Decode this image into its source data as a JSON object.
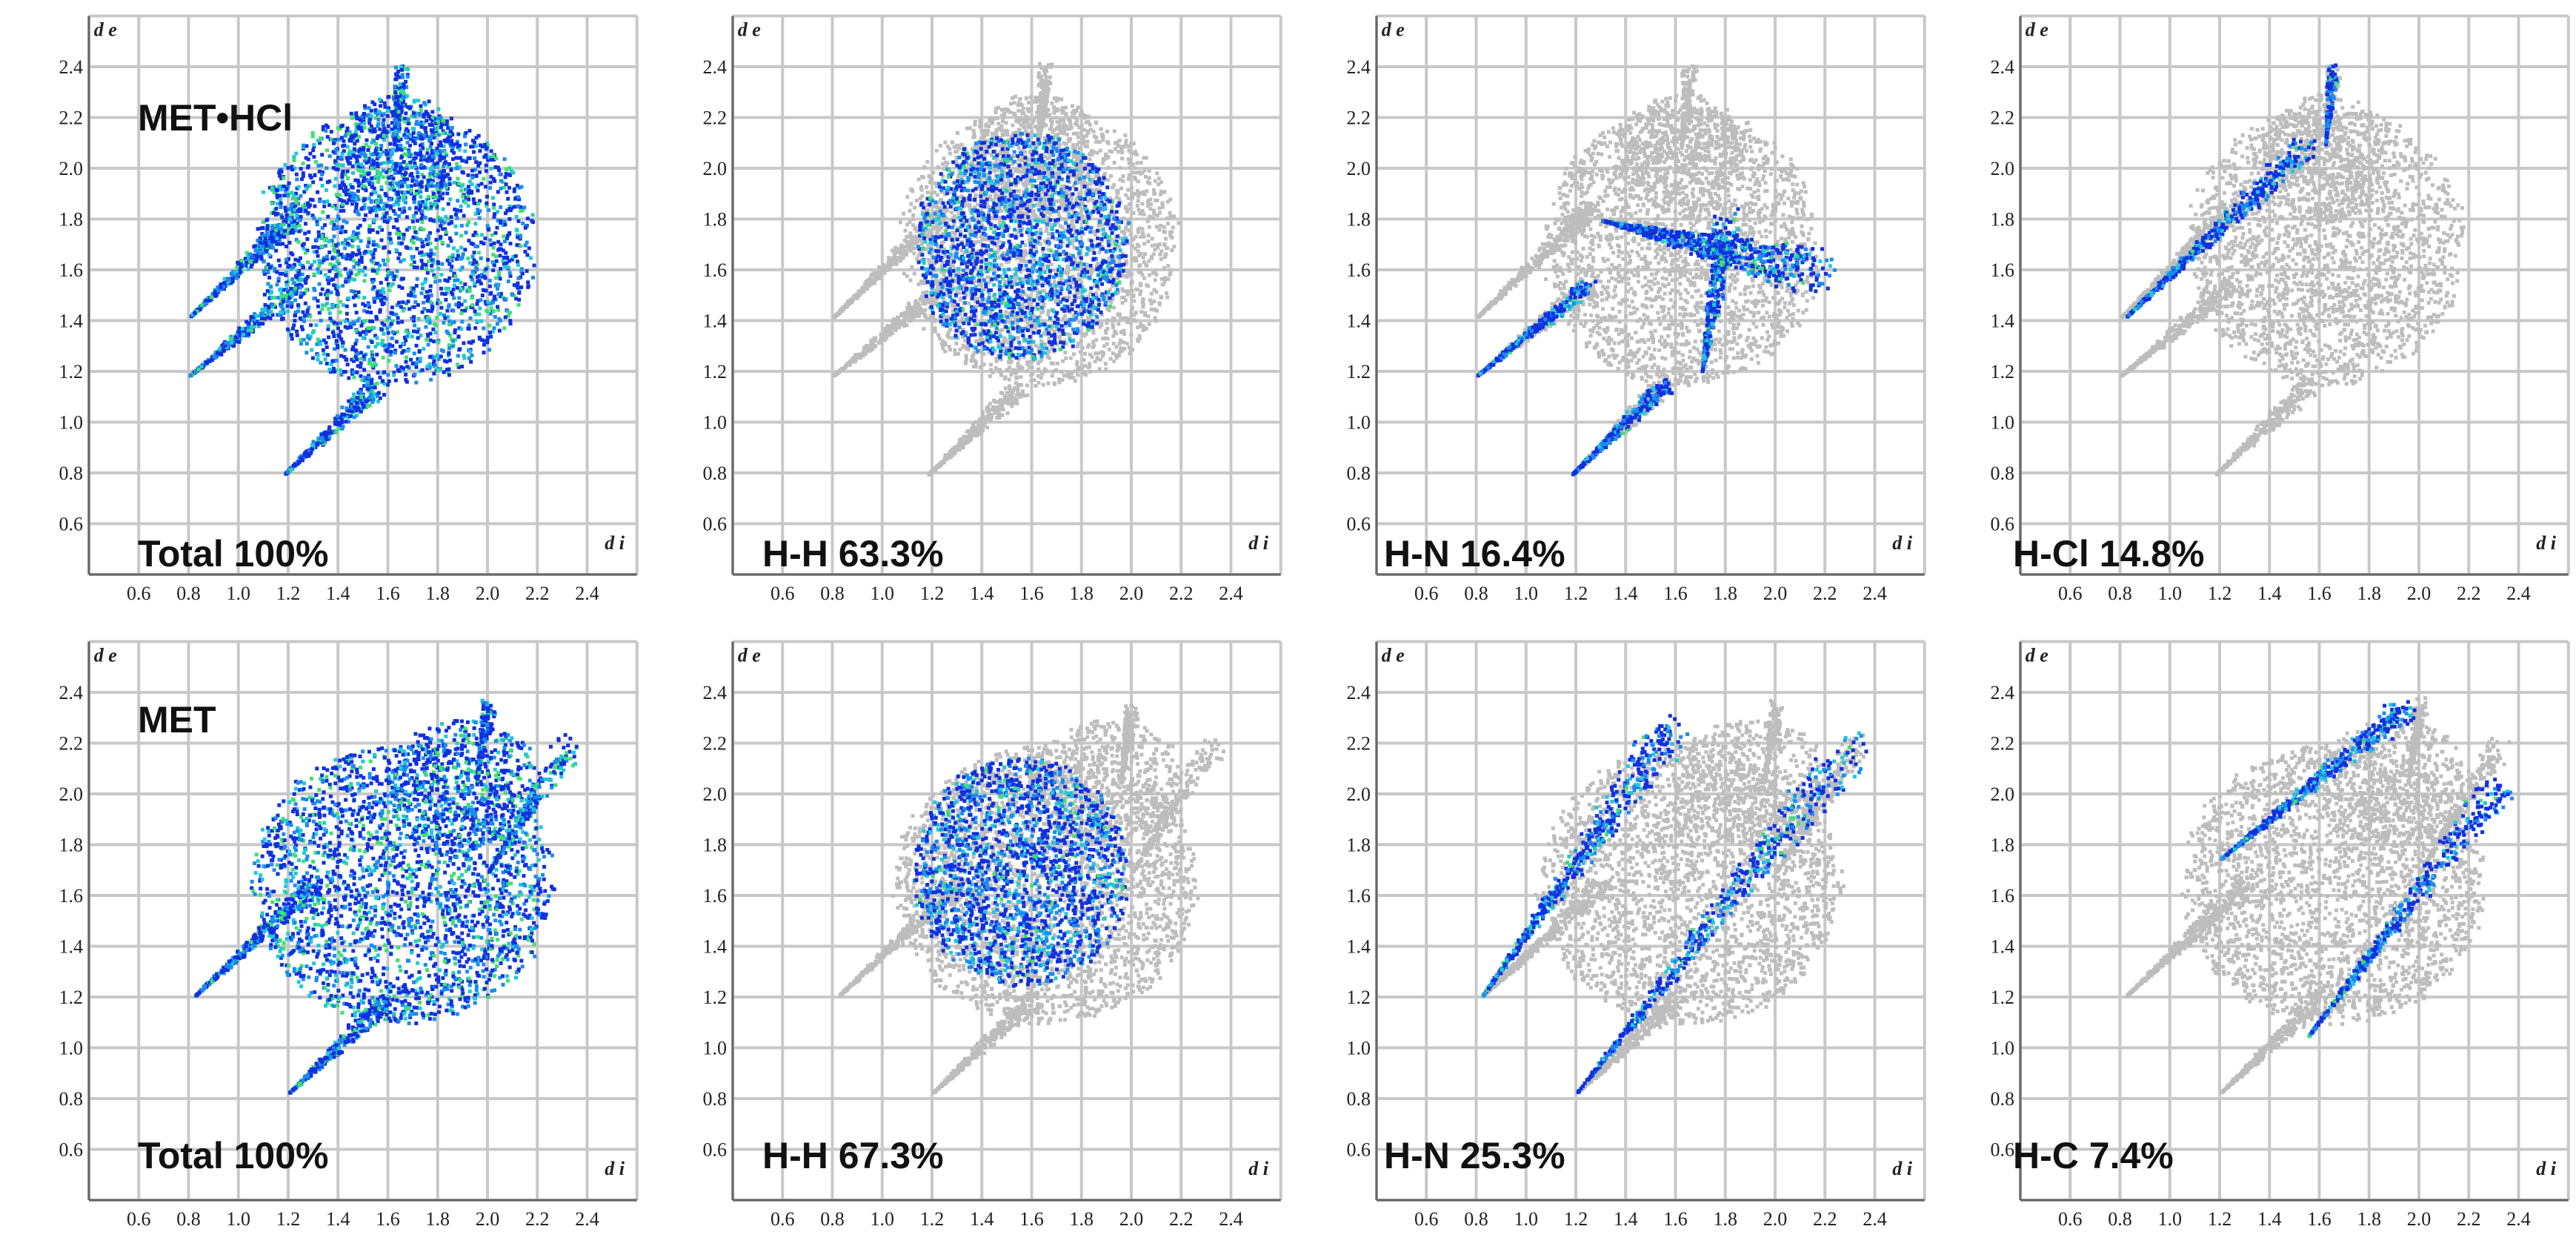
{
  "chart_data": [
    {
      "type": "scatter",
      "compound": "MET•HCl",
      "label": "Total 100%",
      "xlabel": "d i",
      "ylabel": "d e",
      "xlim": [
        0.4,
        2.6
      ],
      "ylim": [
        0.4,
        2.6
      ],
      "xticks": [
        "0.6",
        "0.8",
        "1.0",
        "1.2",
        "1.4",
        "1.6",
        "1.8",
        "2.0",
        "2.2",
        "2.4"
      ],
      "yticks": [
        "0.6",
        "0.8",
        "1.0",
        "1.2",
        "1.4",
        "1.6",
        "1.8",
        "2.0",
        "2.2",
        "2.4"
      ],
      "highlight": "all",
      "background": "none"
    },
    {
      "type": "scatter",
      "label": "H-H 63.3%",
      "xlabel": "d i",
      "ylabel": "d e",
      "xlim": [
        0.4,
        2.6
      ],
      "ylim": [
        0.4,
        2.6
      ],
      "xticks": [
        "0.6",
        "0.8",
        "1.0",
        "1.2",
        "1.4",
        "1.6",
        "1.8",
        "2.0",
        "2.2",
        "2.4"
      ],
      "yticks": [
        "0.6",
        "0.8",
        "1.0",
        "1.2",
        "1.4",
        "1.6",
        "1.8",
        "2.0",
        "2.2",
        "2.4"
      ],
      "contact": "H-H",
      "percent": 63.3,
      "highlight": "center",
      "background": "HCl"
    },
    {
      "type": "scatter",
      "label": "H-N 16.4%",
      "xlabel": "d i",
      "ylabel": "d e",
      "xlim": [
        0.4,
        2.6
      ],
      "ylim": [
        0.4,
        2.6
      ],
      "xticks": [
        "0.6",
        "0.8",
        "1.0",
        "1.2",
        "1.4",
        "1.6",
        "1.8",
        "2.0",
        "2.2",
        "2.4"
      ],
      "yticks": [
        "0.6",
        "0.8",
        "1.0",
        "1.2",
        "1.4",
        "1.6",
        "1.8",
        "2.0",
        "2.2",
        "2.4"
      ],
      "contact": "H-N",
      "percent": 16.4,
      "highlight": "spikes_arc",
      "background": "HCl"
    },
    {
      "type": "scatter",
      "label": "H-Cl 14.8%",
      "xlabel": "d i",
      "ylabel": "d e",
      "xlim": [
        0.4,
        2.6
      ],
      "ylim": [
        0.4,
        2.6
      ],
      "xticks": [
        "0.6",
        "0.8",
        "1.0",
        "1.2",
        "1.4",
        "1.6",
        "1.8",
        "2.0",
        "2.2",
        "2.4"
      ],
      "yticks": [
        "0.6",
        "0.8",
        "1.0",
        "1.2",
        "1.4",
        "1.6",
        "1.8",
        "2.0",
        "2.2",
        "2.4"
      ],
      "contact": "H-Cl",
      "percent": 14.8,
      "highlight": "upper_spike",
      "background": "HCl"
    },
    {
      "type": "scatter",
      "compound": "MET",
      "label": "Total 100%",
      "xlabel": "d i",
      "ylabel": "d e",
      "xlim": [
        0.4,
        2.6
      ],
      "ylim": [
        0.4,
        2.6
      ],
      "xticks": [
        "0.6",
        "0.8",
        "1.0",
        "1.2",
        "1.4",
        "1.6",
        "1.8",
        "2.0",
        "2.2",
        "2.4"
      ],
      "yticks": [
        "0.6",
        "0.8",
        "1.0",
        "1.2",
        "1.4",
        "1.6",
        "1.8",
        "2.0",
        "2.2",
        "2.4"
      ],
      "highlight": "all",
      "background": "none"
    },
    {
      "type": "scatter",
      "label": "H-H 67.3%",
      "xlabel": "d i",
      "ylabel": "d e",
      "xlim": [
        0.4,
        2.6
      ],
      "ylim": [
        0.4,
        2.6
      ],
      "xticks": [
        "0.6",
        "0.8",
        "1.0",
        "1.2",
        "1.4",
        "1.6",
        "1.8",
        "2.0",
        "2.2",
        "2.4"
      ],
      "yticks": [
        "0.6",
        "0.8",
        "1.0",
        "1.2",
        "1.4",
        "1.6",
        "1.8",
        "2.0",
        "2.2",
        "2.4"
      ],
      "contact": "H-H",
      "percent": 67.3,
      "highlight": "center",
      "background": "MET"
    },
    {
      "type": "scatter",
      "label": "H-N 25.3%",
      "xlabel": "d i",
      "ylabel": "d e",
      "xlim": [
        0.4,
        2.6
      ],
      "ylim": [
        0.4,
        2.6
      ],
      "xticks": [
        "0.6",
        "0.8",
        "1.0",
        "1.2",
        "1.4",
        "1.6",
        "1.8",
        "2.0",
        "2.2",
        "2.4"
      ],
      "yticks": [
        "0.6",
        "0.8",
        "1.0",
        "1.2",
        "1.4",
        "1.6",
        "1.8",
        "2.0",
        "2.2",
        "2.4"
      ],
      "contact": "H-N",
      "percent": 25.3,
      "highlight": "wings",
      "background": "MET"
    },
    {
      "type": "scatter",
      "label": "H-C 7.4%",
      "xlabel": "d i",
      "ylabel": "d e",
      "xlim": [
        0.4,
        2.6
      ],
      "ylim": [
        0.4,
        2.6
      ],
      "xticks": [
        "0.6",
        "0.8",
        "1.0",
        "1.2",
        "1.4",
        "1.6",
        "1.8",
        "2.0",
        "2.2",
        "2.4"
      ],
      "yticks": [
        "0.6",
        "0.8",
        "1.0",
        "1.2",
        "1.4",
        "1.6",
        "1.8",
        "2.0",
        "2.2",
        "2.4"
      ],
      "contact": "H-C",
      "percent": 7.4,
      "highlight": "diag_bands",
      "background": "MET"
    }
  ],
  "colors": {
    "background_points": "#bdbdbd",
    "low_density": "#1030e0",
    "mid_density": "#1a8cf0",
    "high_density": "#20c8d8",
    "peak_density": "#3ee070",
    "grid": "#c8c8c8",
    "axis": "#666666"
  },
  "compounds": [
    "MET•HCl",
    "MET"
  ]
}
